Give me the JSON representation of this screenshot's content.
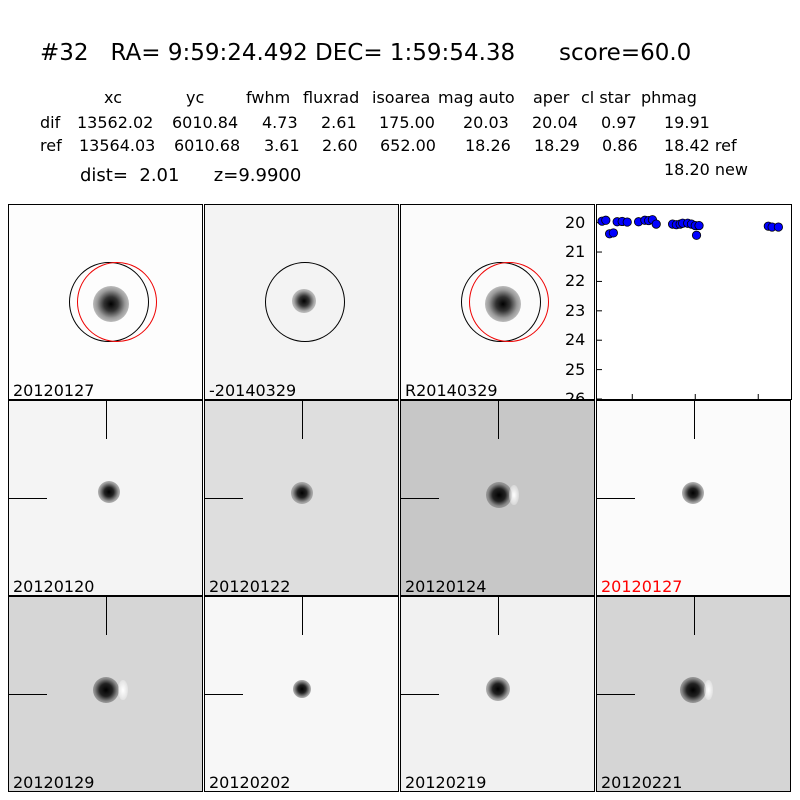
{
  "header": {
    "title": "#32   RA= 9:59:24.492 DEC= 1:59:54.38      score=60.0",
    "columns": [
      "xc",
      "yc",
      "fwhm",
      "fluxrad",
      "isoarea",
      "mag auto",
      "aper",
      "cl star",
      "phmag"
    ],
    "rows": [
      {
        "label": "dif",
        "values": [
          "13562.02",
          "6010.84",
          "4.73",
          "2.61",
          "175.00",
          "20.03",
          "20.04",
          "0.97",
          "19.91"
        ]
      },
      {
        "label": "ref",
        "values": [
          "13564.03",
          "6010.68",
          "3.61",
          "2.60",
          "652.00",
          "18.26",
          "18.29",
          "0.86",
          "18.42 ref"
        ]
      }
    ],
    "phmag_new": "18.20 new",
    "dist_line": "dist=  2.01      z=9.9900"
  },
  "panels": [
    {
      "label": "20120127",
      "label_color": "#000000"
    },
    {
      "label": "-20140329",
      "label_color": "#000000"
    },
    {
      "label": "R20140329",
      "label_color": "#000000"
    },
    {
      "label": "20120120",
      "label_color": "#000000"
    },
    {
      "label": "20120122",
      "label_color": "#000000"
    },
    {
      "label": "20120124",
      "label_color": "#000000"
    },
    {
      "label": "20120127",
      "label_color": "#ff0000"
    },
    {
      "label": "20120129",
      "label_color": "#000000"
    },
    {
      "label": "20120202",
      "label_color": "#000000"
    },
    {
      "label": "20120219",
      "label_color": "#000000"
    },
    {
      "label": "20120221",
      "label_color": "#000000"
    }
  ],
  "chart_data": {
    "type": "scatter",
    "title": "",
    "xlabel": "",
    "ylabel": "",
    "xlim": [
      -28,
      126
    ],
    "ylim": [
      26,
      19.4
    ],
    "y_inverted": true,
    "xticks": [
      0,
      50,
      100
    ],
    "yticks": [
      20,
      21,
      22,
      23,
      24,
      25,
      26
    ],
    "marker_color": "#0000ff",
    "points": [
      {
        "x": -24,
        "y": 19.95
      },
      {
        "x": -21,
        "y": 19.92
      },
      {
        "x": -18,
        "y": 20.38
      },
      {
        "x": -15,
        "y": 20.35
      },
      {
        "x": -12,
        "y": 19.97
      },
      {
        "x": -8,
        "y": 19.96
      },
      {
        "x": -4,
        "y": 19.98
      },
      {
        "x": 5,
        "y": 19.97
      },
      {
        "x": 10,
        "y": 19.92
      },
      {
        "x": 13,
        "y": 19.93
      },
      {
        "x": 16,
        "y": 19.9
      },
      {
        "x": 19,
        "y": 20.05
      },
      {
        "x": 32,
        "y": 20.05
      },
      {
        "x": 35,
        "y": 20.07
      },
      {
        "x": 38,
        "y": 20.05
      },
      {
        "x": 40,
        "y": 20.02
      },
      {
        "x": 44,
        "y": 20.02
      },
      {
        "x": 47,
        "y": 20.05
      },
      {
        "x": 50,
        "y": 20.1
      },
      {
        "x": 51,
        "y": 20.43
      },
      {
        "x": 53,
        "y": 20.1
      },
      {
        "x": 108,
        "y": 20.12
      },
      {
        "x": 111,
        "y": 20.15
      },
      {
        "x": 116,
        "y": 20.15
      }
    ]
  }
}
